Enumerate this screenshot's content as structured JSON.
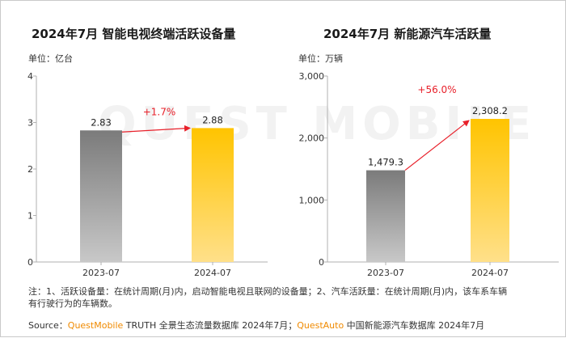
{
  "watermark": "QUEST MOBILE",
  "chart_data": [
    {
      "type": "bar",
      "title": "2024年7月 智能电视终端活跃设备量",
      "unit": "单位：亿台",
      "categories": [
        "2023-07",
        "2024-07"
      ],
      "values": [
        2.83,
        2.88
      ],
      "value_labels": [
        "2.83",
        "2.88"
      ],
      "ylim": [
        0,
        4
      ],
      "yticks": [
        0,
        1,
        2,
        3,
        4
      ],
      "ytick_labels": [
        "0",
        "1",
        "2",
        "3",
        "4"
      ],
      "growth": "+1.7%",
      "colors": [
        "#8a8a8a",
        "#ffc400"
      ],
      "grid": false
    },
    {
      "type": "bar",
      "title": "2024年7月 新能源汽车活跃量",
      "unit": "单位：万辆",
      "categories": [
        "2023-07",
        "2024-07"
      ],
      "values": [
        1479.3,
        2308.2
      ],
      "value_labels": [
        "1,479.3",
        "2,308.2"
      ],
      "ylim": [
        0,
        3000
      ],
      "yticks": [
        0,
        1000,
        2000,
        3000
      ],
      "ytick_labels": [
        "0",
        "1,000",
        "2,000",
        "3,000"
      ],
      "growth": "+56.0%",
      "colors": [
        "#8a8a8a",
        "#ffc400"
      ],
      "grid": false
    }
  ],
  "notes": {
    "line1": "注：1、活跃设备量：在统计周期(月)内，启动智能电视且联网的设备量；2、汽车活跃量：在统计周期(月)内，该车系车辆",
    "line2": "有行驶行为的车辆数。"
  },
  "source": {
    "prefix": "Source：",
    "brand1": "QuestMobile",
    "text1": " TRUTH 全景生态流量数据库 2024年7月；",
    "brand2": "QuestAuto",
    "text2": " 中国新能源汽车数据库 2024年7月"
  }
}
